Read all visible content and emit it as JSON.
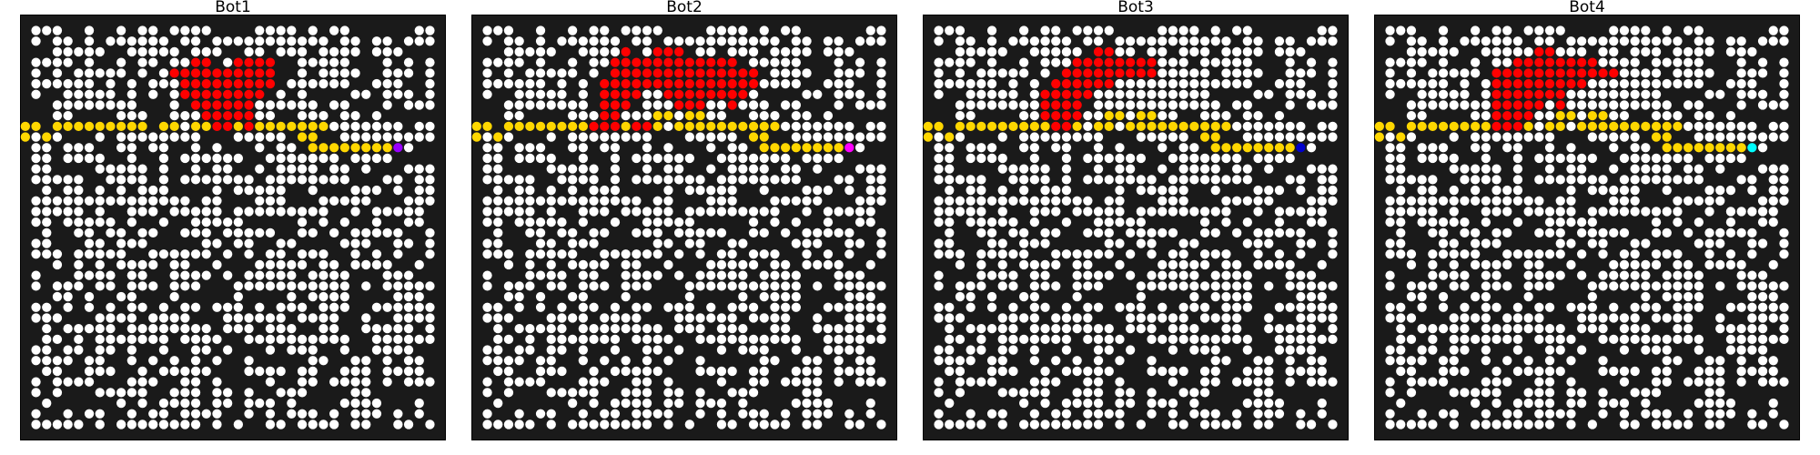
{
  "colors": {
    "background": "#1a1a1a",
    "open_cell": "#ffffff",
    "fire": "#ff0000",
    "path": "#ffd700",
    "border": "#000000"
  },
  "grid": {
    "cols": 40,
    "rows": 40
  },
  "panels": [
    {
      "title": "Bot1",
      "bot_color": "#9900ff",
      "fire": [
        [
          4,
          16,
          2
        ],
        [
          4,
          20,
          4
        ],
        [
          5,
          14,
          10
        ],
        [
          6,
          15,
          9
        ],
        [
          7,
          15,
          8
        ],
        [
          8,
          16,
          6
        ],
        [
          9,
          17,
          5
        ],
        [
          10,
          18,
          2
        ],
        [
          10,
          21,
          1
        ]
      ]
    },
    {
      "title": "Bot2",
      "bot_color": "#ff00ff",
      "fire": [
        [
          3,
          14,
          1
        ],
        [
          3,
          17,
          3
        ],
        [
          4,
          13,
          12
        ],
        [
          5,
          13,
          14
        ],
        [
          6,
          12,
          15
        ],
        [
          7,
          12,
          4
        ],
        [
          7,
          18,
          8
        ],
        [
          8,
          12,
          3
        ],
        [
          8,
          19,
          3
        ],
        [
          8,
          24,
          1
        ],
        [
          9,
          12,
          2
        ],
        [
          10,
          11,
          3
        ],
        [
          10,
          15,
          2
        ]
      ]
    },
    {
      "title": "Bot3",
      "bot_color": "#0000cc",
      "fire": [
        [
          3,
          16,
          2
        ],
        [
          4,
          14,
          8
        ],
        [
          5,
          13,
          9
        ],
        [
          6,
          12,
          6
        ],
        [
          7,
          11,
          5
        ],
        [
          8,
          11,
          4
        ],
        [
          9,
          11,
          4
        ],
        [
          10,
          12,
          2
        ]
      ]
    },
    {
      "title": "Bot4",
      "bot_color": "#00ffff",
      "fire": [
        [
          3,
          15,
          2
        ],
        [
          4,
          13,
          8
        ],
        [
          5,
          11,
          12
        ],
        [
          6,
          11,
          9
        ],
        [
          7,
          11,
          7
        ],
        [
          8,
          11,
          5
        ],
        [
          8,
          17,
          1
        ],
        [
          9,
          11,
          4
        ],
        [
          10,
          11,
          3
        ]
      ]
    }
  ],
  "path": [
    [
      10,
      0,
      2
    ],
    [
      11,
      0,
      1
    ],
    [
      11,
      2,
      1
    ],
    [
      10,
      3,
      9
    ],
    [
      10,
      13,
      2
    ],
    [
      10,
      16,
      2
    ],
    [
      9,
      17,
      2
    ],
    [
      9,
      20,
      2
    ],
    [
      10,
      19,
      10
    ],
    [
      11,
      26,
      2
    ],
    [
      12,
      27,
      8
    ],
    [
      12,
      35,
      1
    ]
  ],
  "open_seed": 7
}
